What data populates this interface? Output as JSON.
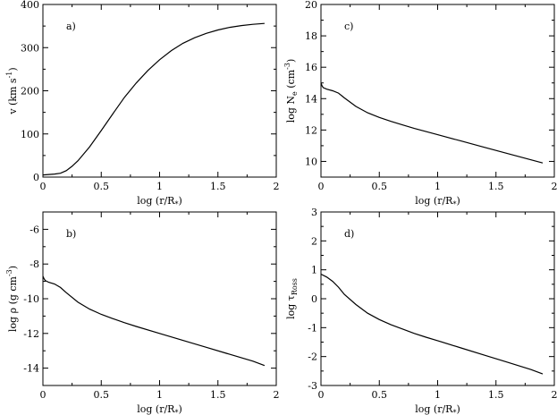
{
  "chart_data": [
    {
      "type": "line",
      "panel_label": "a)",
      "xlabel": "log (r/R",
      "xlabel_sub": "*",
      "xlabel_tail": ")",
      "ylabel": "v (km s",
      "ylabel_sup": "-1",
      "ylabel_tail": ")",
      "xlim": [
        0,
        2
      ],
      "ylim": [
        0,
        400
      ],
      "x_ticks": [
        0,
        0.5,
        1,
        1.5,
        2
      ],
      "x_tick_labels": [
        "0",
        "0.5",
        "1",
        "1.5",
        "2"
      ],
      "y_ticks": [
        0,
        100,
        200,
        300,
        400
      ],
      "y_tick_labels": [
        "0",
        "100",
        "200",
        "300",
        "400"
      ],
      "series": [
        {
          "x": [
            0,
            0.05,
            0.1,
            0.15,
            0.2,
            0.25,
            0.3,
            0.4,
            0.5,
            0.6,
            0.7,
            0.8,
            0.9,
            1.0,
            1.1,
            1.2,
            1.3,
            1.4,
            1.5,
            1.6,
            1.7,
            1.8,
            1.9
          ],
          "y": [
            5,
            6,
            7,
            9,
            15,
            25,
            38,
            70,
            108,
            147,
            185,
            218,
            247,
            272,
            293,
            310,
            323,
            333,
            341,
            347,
            351,
            354,
            356
          ]
        }
      ]
    },
    {
      "type": "line",
      "panel_label": "c)",
      "xlabel": "log (r/R",
      "xlabel_sub": "*",
      "xlabel_tail": ")",
      "ylabel": "log N",
      "ylabel_sub": "e",
      "ylabel_mid": " (cm",
      "ylabel_sup": "-3",
      "ylabel_tail": ")",
      "xlim": [
        0,
        2
      ],
      "ylim": [
        9,
        20
      ],
      "x_ticks": [
        0,
        0.5,
        1,
        1.5,
        2
      ],
      "x_tick_labels": [
        "0",
        "0.5",
        "1",
        "1.5",
        "2"
      ],
      "y_ticks": [
        10,
        12,
        14,
        16,
        18,
        20
      ],
      "y_tick_labels": [
        "10",
        "12",
        "14",
        "16",
        "18",
        "20"
      ],
      "series": [
        {
          "x": [
            0,
            0.01,
            0.02,
            0.05,
            0.1,
            0.15,
            0.2,
            0.3,
            0.4,
            0.5,
            0.6,
            0.7,
            0.8,
            1.0,
            1.2,
            1.4,
            1.6,
            1.8,
            1.9
          ],
          "y": [
            15.0,
            14.8,
            14.7,
            14.6,
            14.5,
            14.35,
            14.05,
            13.5,
            13.1,
            12.8,
            12.55,
            12.32,
            12.1,
            11.7,
            11.3,
            10.9,
            10.5,
            10.1,
            9.9
          ]
        }
      ]
    },
    {
      "type": "line",
      "panel_label": "b)",
      "xlabel": "log (r/R",
      "xlabel_sub": "*",
      "xlabel_tail": ")",
      "ylabel": "log ρ (g cm",
      "ylabel_sup": "-3",
      "ylabel_tail": ")",
      "xlim": [
        0,
        2
      ],
      "ylim": [
        -15,
        -5
      ],
      "x_ticks": [
        0,
        0.5,
        1,
        1.5,
        2
      ],
      "x_tick_labels": [
        "0",
        "0.5",
        "1",
        "1.5",
        "2"
      ],
      "y_ticks": [
        -14,
        -12,
        -10,
        -8,
        -6
      ],
      "y_tick_labels": [
        "-14",
        "-12",
        "-10",
        "-8",
        "-6"
      ],
      "series": [
        {
          "x": [
            0,
            0.01,
            0.02,
            0.05,
            0.1,
            0.15,
            0.2,
            0.3,
            0.4,
            0.5,
            0.6,
            0.7,
            0.8,
            1.0,
            1.2,
            1.4,
            1.6,
            1.8,
            1.9
          ],
          "y": [
            -8.7,
            -8.85,
            -8.95,
            -9.05,
            -9.15,
            -9.35,
            -9.65,
            -10.2,
            -10.6,
            -10.9,
            -11.15,
            -11.38,
            -11.6,
            -12.0,
            -12.4,
            -12.8,
            -13.2,
            -13.6,
            -13.85
          ]
        }
      ]
    },
    {
      "type": "line",
      "panel_label": "d)",
      "xlabel": "log (r/R",
      "xlabel_sub": "*",
      "xlabel_tail": ")",
      "ylabel": "log τ",
      "ylabel_sub": "Ross",
      "xlim": [
        0,
        2
      ],
      "ylim": [
        -3,
        3
      ],
      "x_ticks": [
        0,
        0.5,
        1,
        1.5,
        2
      ],
      "x_tick_labels": [
        "0",
        "0.5",
        "1",
        "1.5",
        "2"
      ],
      "y_ticks": [
        -3,
        -2,
        -1,
        0,
        1,
        2,
        3
      ],
      "y_tick_labels": [
        "-3",
        "-2",
        "-1",
        "0",
        "1",
        "2",
        "3"
      ],
      "series": [
        {
          "x": [
            0,
            0.05,
            0.1,
            0.15,
            0.2,
            0.3,
            0.4,
            0.5,
            0.6,
            0.7,
            0.8,
            0.9,
            1.0,
            1.2,
            1.4,
            1.6,
            1.8,
            1.9
          ],
          "y": [
            0.85,
            0.75,
            0.6,
            0.4,
            0.15,
            -0.2,
            -0.5,
            -0.72,
            -0.9,
            -1.05,
            -1.2,
            -1.33,
            -1.45,
            -1.7,
            -1.95,
            -2.2,
            -2.45,
            -2.6
          ]
        }
      ]
    }
  ]
}
